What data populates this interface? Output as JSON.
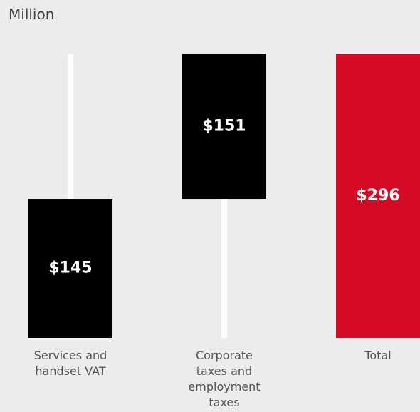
{
  "chart_data": {
    "type": "waterfall",
    "unit_label": "Million",
    "categories": [
      "Services and handset VAT",
      "Corporate taxes and employment taxes",
      "Total"
    ],
    "values": [
      145,
      151,
      296
    ],
    "value_labels": [
      "$145",
      "$151",
      "$296"
    ],
    "is_total": [
      false,
      false,
      true
    ],
    "colors": [
      "#000000",
      "#000000",
      "#d50a25"
    ],
    "connector_color": "#ffffff"
  }
}
